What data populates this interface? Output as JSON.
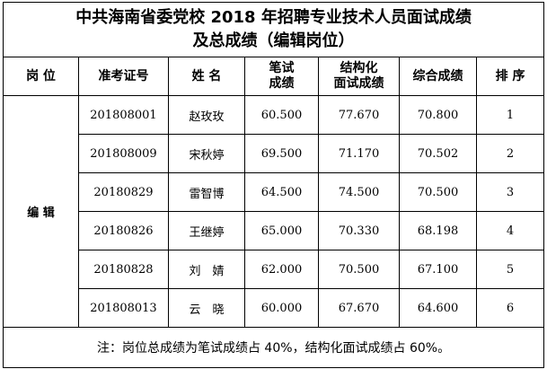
{
  "title": {
    "line1": "中共海南省委党校 2018 年招聘专业技术人员面试成绩",
    "line2": "及总成绩（编辑岗位）"
  },
  "headers": {
    "position": "岗 位",
    "exam_id": "准考证号",
    "name": "姓 名",
    "written_l1": "笔试",
    "written_l2": "成绩",
    "interview_l1": "结构化",
    "interview_l2": "面试成绩",
    "total": "综合成绩",
    "rank": "排 序"
  },
  "position": "编 辑",
  "rows": [
    {
      "exam_id": "201808001",
      "name": "赵玫玫",
      "written": "60.500",
      "interview": "77.670",
      "total": "70.800",
      "rank": "1"
    },
    {
      "exam_id": "201808009",
      "name": "宋秋婷",
      "written": "69.500",
      "interview": "71.170",
      "total": "70.502",
      "rank": "2"
    },
    {
      "exam_id": "20180829",
      "name": "雷智博",
      "written": "64.500",
      "interview": "74.500",
      "total": "70.500",
      "rank": "3"
    },
    {
      "exam_id": "20180826",
      "name": "王继婷",
      "written": "65.000",
      "interview": "70.330",
      "total": "68.198",
      "rank": "4"
    },
    {
      "exam_id": "20180828",
      "name": "刘　婧",
      "written": "62.000",
      "interview": "70.500",
      "total": "67.100",
      "rank": "5"
    },
    {
      "exam_id": "201808013",
      "name": "云　晓",
      "written": "60.000",
      "interview": "67.670",
      "total": "64.600",
      "rank": "6"
    }
  ],
  "note": "注：岗位总成绩为笔试成绩占 40%，结构化面试成绩占 60%。"
}
